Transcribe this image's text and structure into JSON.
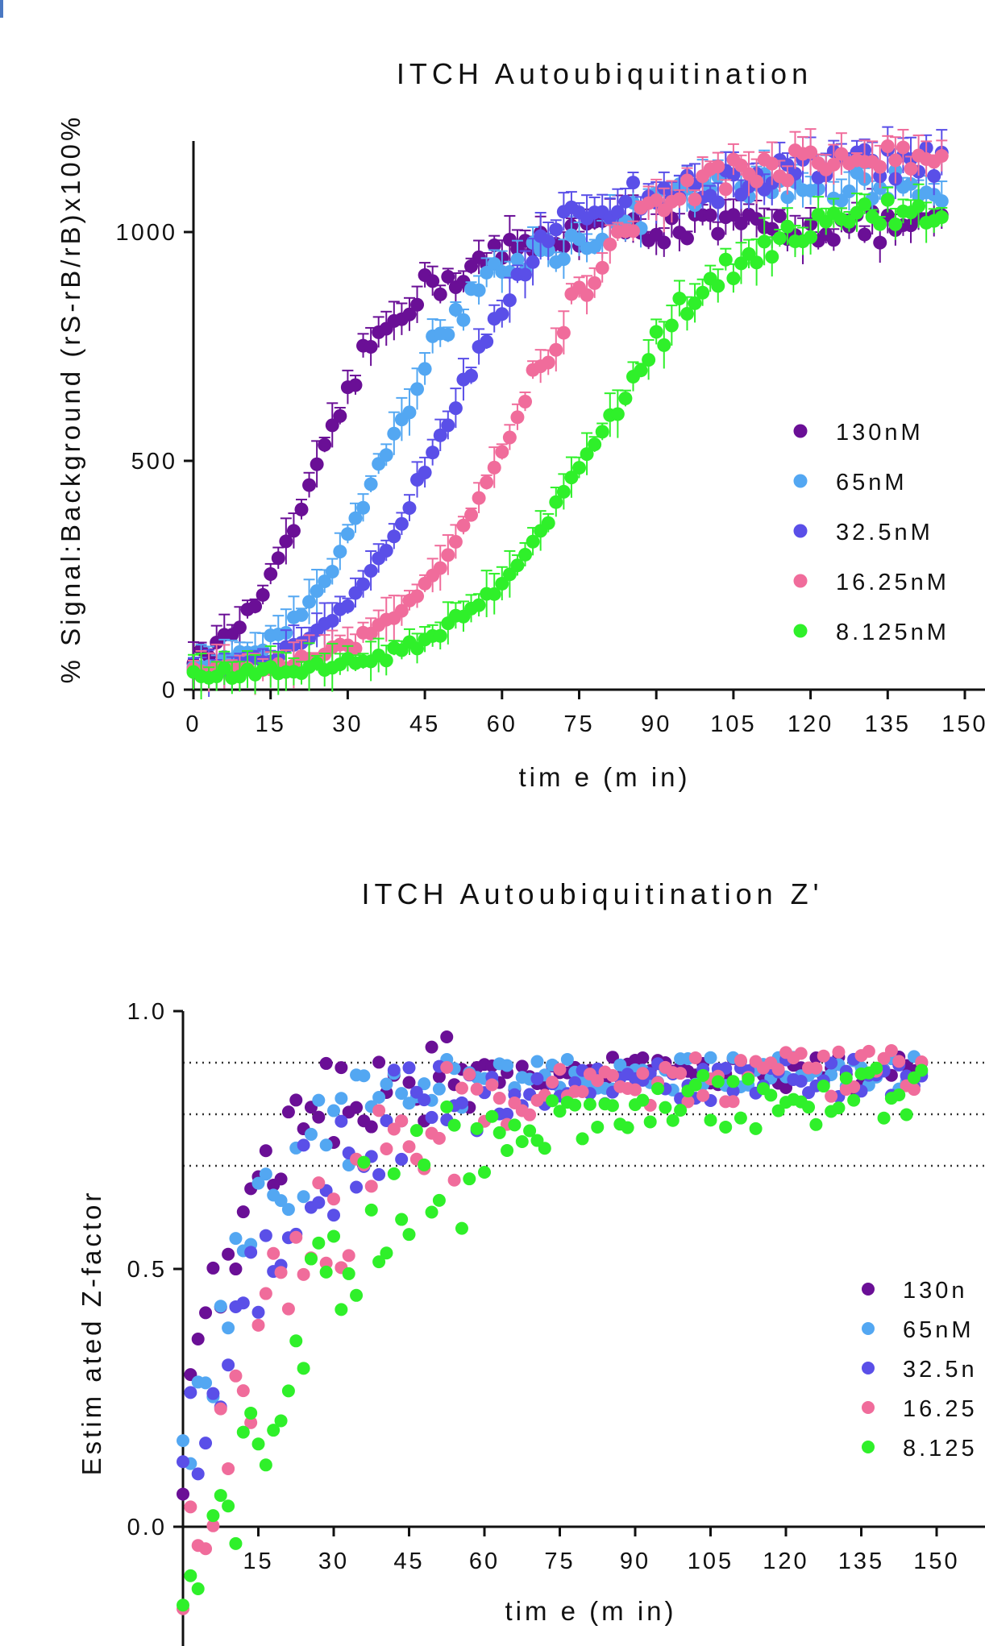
{
  "chart_data": [
    {
      "type": "scatter",
      "title": "ITCH Autoubiquitination",
      "xlabel": "tim e (m in)",
      "ylabel": "% Signal:Background (rS-rB/rB)x100%",
      "xlim": [
        0,
        150
      ],
      "ylim": [
        0,
        1200
      ],
      "xticks": [
        0,
        15,
        30,
        45,
        60,
        75,
        90,
        105,
        120,
        135,
        150
      ],
      "xtick_labels": [
        "0",
        "15",
        "30",
        "45",
        "60",
        "75",
        "90",
        "105",
        "120",
        "135",
        "150"
      ],
      "yticks": [
        0,
        500,
        1000
      ],
      "ytick_labels": [
        "0",
        "500",
        "1000"
      ],
      "error_bars": true,
      "legend": "right",
      "series": [
        {
          "name": "130nM",
          "color": "#6a0f96",
          "model": {
            "top": 930,
            "mid": 24,
            "k": 0.13,
            "base": 30,
            "plat_start": 52,
            "plat_end": 1010
          }
        },
        {
          "name": "65nM",
          "color": "#53a7f2",
          "model": {
            "top": 990,
            "mid": 37,
            "k": 0.11,
            "base": 30,
            "plat_start": 75,
            "plat_end": 1100
          }
        },
        {
          "name": "32.5nM",
          "color": "#5a4fe8",
          "model": {
            "top": 1100,
            "mid": 48,
            "k": 0.1,
            "base": 30,
            "plat_start": 100,
            "plat_end": 1150
          }
        },
        {
          "name": "16.25nM",
          "color": "#f06c9b",
          "model": {
            "top": 1160,
            "mid": 63,
            "k": 0.085,
            "base": 30,
            "plat_start": 115,
            "plat_end": 1160
          }
        },
        {
          "name": "8.125nM",
          "color": "#2ff02a",
          "model": {
            "top": 1050,
            "mid": 78,
            "k": 0.075,
            "base": 30,
            "plat_start": 125,
            "plat_end": 1040
          }
        }
      ]
    },
    {
      "type": "scatter",
      "title": "ITCH Autoubiquitination Z'",
      "xlabel": "tim e (m in)",
      "ylabel": "Estim ated Z-factor",
      "xlim": [
        0,
        150
      ],
      "ylim": [
        -0.3,
        1.0
      ],
      "xticks": [
        15,
        30,
        45,
        60,
        75,
        90,
        105,
        120,
        135,
        150
      ],
      "xtick_labels": [
        "15",
        "30",
        "45",
        "60",
        "75",
        "90",
        "105",
        "120",
        "135",
        "150"
      ],
      "yticks": [
        0.0,
        0.5,
        1.0
      ],
      "ytick_labels": [
        "0.0",
        "0.5",
        "1.0"
      ],
      "reference_lines": [
        0.9,
        0.8,
        0.7
      ],
      "legend": "right",
      "series": [
        {
          "name": "130nM",
          "label_visible": "130n",
          "color": "#6a0f96",
          "model": {
            "top": 0.88,
            "k": 0.085,
            "start": 0.15,
            "noise": 0.04
          }
        },
        {
          "name": "65nM",
          "label_visible": "65nM",
          "color": "#53a7f2",
          "model": {
            "top": 0.88,
            "k": 0.065,
            "start": 0.08,
            "noise": 0.04
          }
        },
        {
          "name": "32.5nM",
          "label_visible": "32.5n",
          "color": "#5a4fe8",
          "model": {
            "top": 0.87,
            "k": 0.05,
            "start": 0.1,
            "noise": 0.05
          }
        },
        {
          "name": "16.25nM",
          "label_visible": "16.25",
          "color": "#f06c9b",
          "model": {
            "top": 0.88,
            "k": 0.045,
            "start": -0.15,
            "noise": 0.06
          }
        },
        {
          "name": "8.125nM",
          "label_visible": "8.125",
          "color": "#2ff02a",
          "model": {
            "top": 0.84,
            "k": 0.04,
            "start": -0.3,
            "noise": 0.07
          }
        }
      ]
    }
  ]
}
